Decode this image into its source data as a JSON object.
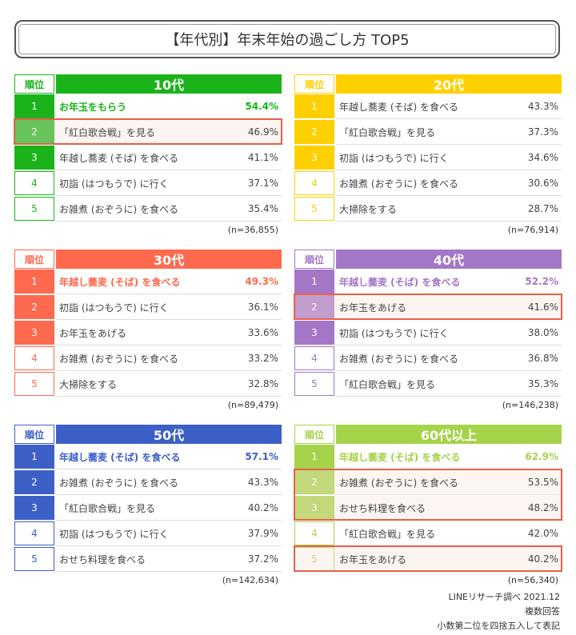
{
  "title": "【年代別】年末年始の過ごし方 TOP5",
  "rank_header": "順位",
  "panels": [
    {
      "label": "10代",
      "color": "#1ab31a",
      "top_row_color": "#1ab31a",
      "highlighted_rows": [
        [
          1,
          1
        ]
      ],
      "n": "(n=36,855)",
      "rows": [
        {
          "rank": "1",
          "item": "お年玉をもらう",
          "pct": "54.4%"
        },
        {
          "rank": "2",
          "item": "「紅白歌合戦」を見る",
          "pct": "46.9%"
        },
        {
          "rank": "3",
          "item": "年越し蕎麦 (そば) を食べる",
          "pct": "41.1%"
        },
        {
          "rank": "4",
          "item": "初詣 (はつもうで) に行く",
          "pct": "37.1%"
        },
        {
          "rank": "5",
          "item": "お雑煮 (おぞうに) を食べる",
          "pct": "35.4%"
        }
      ]
    },
    {
      "label": "20代",
      "color": "#ffd000",
      "top_row_color": null,
      "highlighted_rows": [],
      "n": "(n=76,914)",
      "rows": [
        {
          "rank": "1",
          "item": "年越し蕎麦 (そば) を食べる",
          "pct": "43.3%"
        },
        {
          "rank": "2",
          "item": "「紅白歌合戦」を見る",
          "pct": "37.3%"
        },
        {
          "rank": "3",
          "item": "初詣 (はつもうで) に行く",
          "pct": "34.6%"
        },
        {
          "rank": "4",
          "item": "お雑煮 (おぞうに) を食べる",
          "pct": "30.6%"
        },
        {
          "rank": "5",
          "item": "大掃除をする",
          "pct": "28.7%"
        }
      ]
    },
    {
      "label": "30代",
      "color": "#ff6a4f",
      "top_row_color": "#ff6a4f",
      "highlighted_rows": [],
      "n": "(n=89,479)",
      "rows": [
        {
          "rank": "1",
          "item": "年越し蕎麦 (そば) を食べる",
          "pct": "49.3%"
        },
        {
          "rank": "2",
          "item": "初詣 (はつもうで) に行く",
          "pct": "36.1%"
        },
        {
          "rank": "3",
          "item": "お年玉をあげる",
          "pct": "33.6%"
        },
        {
          "rank": "4",
          "item": "お雑煮 (おぞうに) を食べる",
          "pct": "33.2%"
        },
        {
          "rank": "5",
          "item": "大掃除をする",
          "pct": "32.8%"
        }
      ]
    },
    {
      "label": "40代",
      "color": "#a477c6",
      "top_row_color": "#a477c6",
      "highlighted_rows": [
        [
          1,
          1
        ]
      ],
      "n": "(n=146,238)",
      "rows": [
        {
          "rank": "1",
          "item": "年越し蕎麦 (そば) を食べる",
          "pct": "52.2%"
        },
        {
          "rank": "2",
          "item": "お年玉をあげる",
          "pct": "41.6%"
        },
        {
          "rank": "3",
          "item": "初詣 (はつもうで) に行く",
          "pct": "38.0%"
        },
        {
          "rank": "4",
          "item": "お雑煮 (おぞうに) を食べる",
          "pct": "36.8%"
        },
        {
          "rank": "5",
          "item": "「紅白歌合戦」を見る",
          "pct": "35.3%"
        }
      ]
    },
    {
      "label": "50代",
      "color": "#3d60c7",
      "top_row_color": "#3d60c7",
      "highlighted_rows": [],
      "n": "(n=142,634)",
      "rows": [
        {
          "rank": "1",
          "item": "年越し蕎麦 (そば) を食べる",
          "pct": "57.1%"
        },
        {
          "rank": "2",
          "item": "お雑煮 (おぞうに) を食べる",
          "pct": "43.3%"
        },
        {
          "rank": "3",
          "item": "「紅白歌合戦」を見る",
          "pct": "40.2%"
        },
        {
          "rank": "4",
          "item": "初詣 (はつもうで) に行く",
          "pct": "37.9%"
        },
        {
          "rank": "5",
          "item": "おせち料理を食べる",
          "pct": "37.2%"
        }
      ]
    },
    {
      "label": "60代以上",
      "color": "#a5d34a",
      "top_row_color": "#a5d34a",
      "highlighted_rows": [
        [
          1,
          2
        ],
        [
          4,
          4
        ]
      ],
      "n": "(n=56,340)",
      "rows": [
        {
          "rank": "1",
          "item": "年越し蕎麦 (そば) を食べる",
          "pct": "62.9%"
        },
        {
          "rank": "2",
          "item": "お雑煮 (おぞうに) を食べる",
          "pct": "53.5%"
        },
        {
          "rank": "3",
          "item": "おせち料理を食べる",
          "pct": "48.2%"
        },
        {
          "rank": "4",
          "item": "「紅白歌合戦」を見る",
          "pct": "42.0%"
        },
        {
          "rank": "5",
          "item": "お年玉をあげる",
          "pct": "40.2%"
        }
      ]
    }
  ],
  "footer": [
    "LINEリサーチ調べ 2021.12",
    "複数回答",
    "小数第二位を四捨五入して表記"
  ]
}
